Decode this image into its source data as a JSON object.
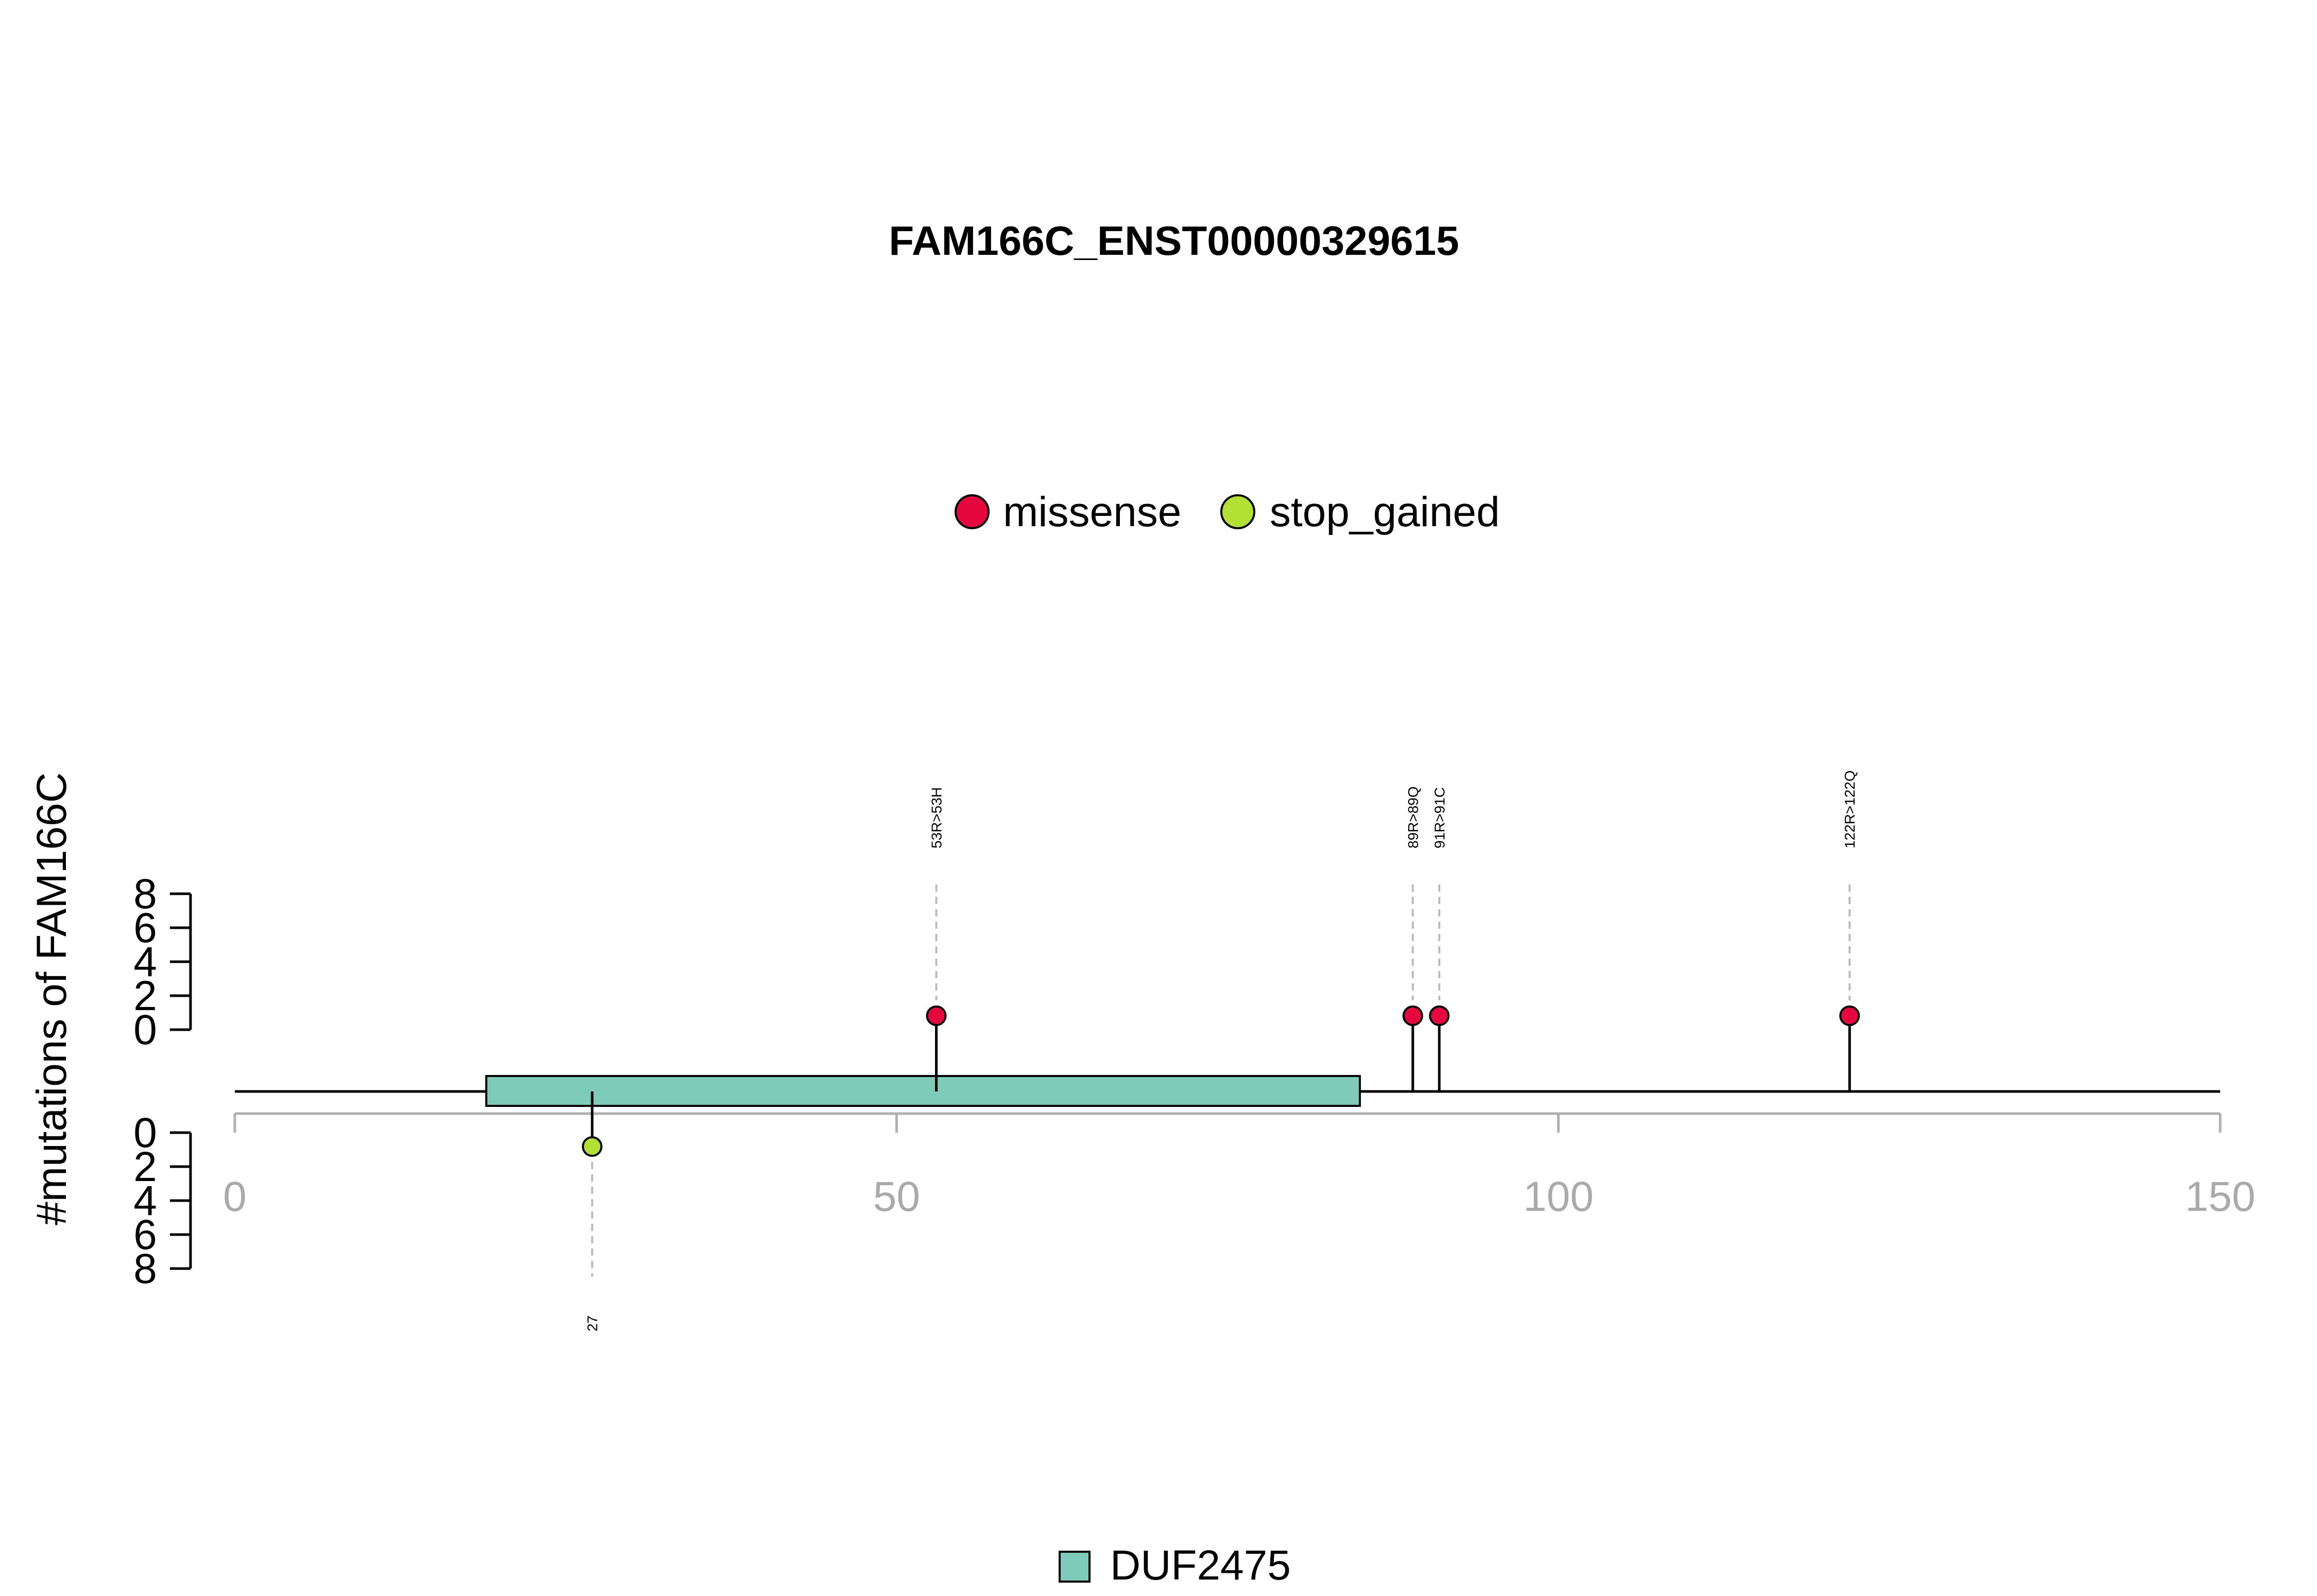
{
  "chart_data": {
    "type": "lollipop",
    "title": "FAM166C_ENST00000329615",
    "ylabel": "#mutations of FAM166C",
    "xlim": [
      0,
      150
    ],
    "x_ticks": [
      "0",
      "50",
      "100",
      "150"
    ],
    "y_ticks_top": [
      "0",
      "2",
      "4",
      "6",
      "8"
    ],
    "y_ticks_bottom": [
      "0",
      "2",
      "4",
      "6",
      "8"
    ],
    "ylim": [
      0,
      8
    ],
    "legend_mutations": [
      {
        "name": "missense",
        "color": "#e5073e"
      },
      {
        "name": "stop_gained",
        "color": "#b3e133"
      }
    ],
    "legend_domains": [
      {
        "name": "DUF2475",
        "color": "#7ecbb9"
      }
    ],
    "domains": [
      {
        "name": "DUF2475",
        "start": 19,
        "end": 85
      }
    ],
    "mutations": [
      {
        "pos": 53,
        "label": "53R>53H",
        "type": "missense",
        "count": 1,
        "side": "top"
      },
      {
        "pos": 89,
        "label": "89R>89Q",
        "type": "missense",
        "count": 1,
        "side": "top"
      },
      {
        "pos": 91,
        "label": "91R>91C",
        "type": "missense",
        "count": 1,
        "side": "top"
      },
      {
        "pos": 122,
        "label": "122R>122Q",
        "type": "missense",
        "count": 1,
        "side": "top"
      },
      {
        "pos": 27,
        "label": "27",
        "type": "stop_gained",
        "count": 1,
        "side": "bottom"
      }
    ]
  }
}
